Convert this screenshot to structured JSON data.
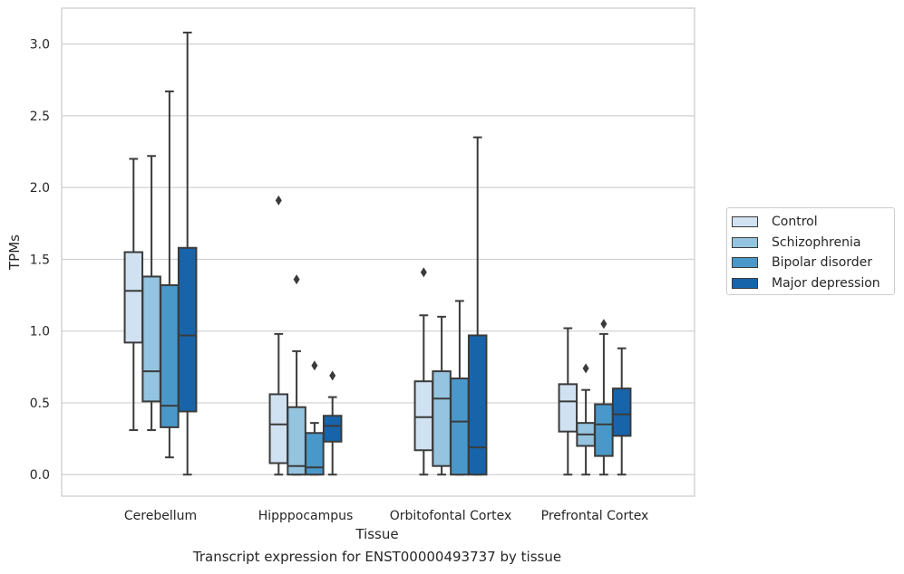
{
  "caption": "Transcript expression for ENST00000493737 by tissue",
  "colors": {
    "Control": "#d0e1f2",
    "Schizophrenia": "#94c4df",
    "Bipolar disorder": "#4a98c9",
    "Major depression": "#1764ab",
    "edge": "#3b3b3b",
    "grid": "#d0d0d0"
  },
  "chart_data": {
    "type": "box",
    "xlabel": "Tissue",
    "ylabel": "TPMs",
    "ylim": [
      -0.15,
      3.25
    ],
    "yticks": [
      "0.0",
      "0.5",
      "1.0",
      "1.5",
      "2.0",
      "2.5",
      "3.0"
    ],
    "grid": "horizontal",
    "legend_position": "right-center",
    "categories": [
      "Cerebellum",
      "Hipppocampus",
      "Orbitofontal Cortex",
      "Prefrontal Cortex"
    ],
    "series": [
      {
        "name": "Control",
        "boxes": [
          {
            "whislo": 0.31,
            "q1": 0.92,
            "med": 1.28,
            "q3": 1.55,
            "whishi": 2.2,
            "fliers": []
          },
          {
            "whislo": 0.0,
            "q1": 0.08,
            "med": 0.35,
            "q3": 0.56,
            "whishi": 0.98,
            "fliers": [
              1.91
            ]
          },
          {
            "whislo": 0.0,
            "q1": 0.17,
            "med": 0.4,
            "q3": 0.65,
            "whishi": 1.11,
            "fliers": [
              1.41
            ]
          },
          {
            "whislo": 0.0,
            "q1": 0.3,
            "med": 0.51,
            "q3": 0.63,
            "whishi": 1.02,
            "fliers": []
          }
        ]
      },
      {
        "name": "Schizophrenia",
        "boxes": [
          {
            "whislo": 0.31,
            "q1": 0.51,
            "med": 0.72,
            "q3": 1.38,
            "whishi": 2.22,
            "fliers": []
          },
          {
            "whislo": 0.0,
            "q1": 0.0,
            "med": 0.06,
            "q3": 0.47,
            "whishi": 0.86,
            "fliers": [
              1.36
            ]
          },
          {
            "whislo": 0.0,
            "q1": 0.06,
            "med": 0.53,
            "q3": 0.72,
            "whishi": 1.1,
            "fliers": []
          },
          {
            "whislo": 0.0,
            "q1": 0.2,
            "med": 0.28,
            "q3": 0.36,
            "whishi": 0.59,
            "fliers": [
              0.74
            ]
          }
        ]
      },
      {
        "name": "Bipolar disorder",
        "boxes": [
          {
            "whislo": 0.12,
            "q1": 0.33,
            "med": 0.48,
            "q3": 1.32,
            "whishi": 2.67,
            "fliers": []
          },
          {
            "whislo": 0.0,
            "q1": 0.0,
            "med": 0.05,
            "q3": 0.29,
            "whishi": 0.36,
            "fliers": [
              0.76
            ]
          },
          {
            "whislo": 0.0,
            "q1": 0.0,
            "med": 0.37,
            "q3": 0.67,
            "whishi": 1.21,
            "fliers": []
          },
          {
            "whislo": 0.0,
            "q1": 0.13,
            "med": 0.35,
            "q3": 0.49,
            "whishi": 0.98,
            "fliers": [
              1.05
            ]
          }
        ]
      },
      {
        "name": "Major depression",
        "boxes": [
          {
            "whislo": 0.0,
            "q1": 0.44,
            "med": 0.97,
            "q3": 1.58,
            "whishi": 3.08,
            "fliers": []
          },
          {
            "whislo": 0.0,
            "q1": 0.23,
            "med": 0.34,
            "q3": 0.41,
            "whishi": 0.54,
            "fliers": [
              0.69
            ]
          },
          {
            "whislo": 0.0,
            "q1": 0.0,
            "med": 0.19,
            "q3": 0.97,
            "whishi": 2.35,
            "fliers": []
          },
          {
            "whislo": 0.0,
            "q1": 0.27,
            "med": 0.42,
            "q3": 0.6,
            "whishi": 0.88,
            "fliers": []
          }
        ]
      }
    ]
  }
}
